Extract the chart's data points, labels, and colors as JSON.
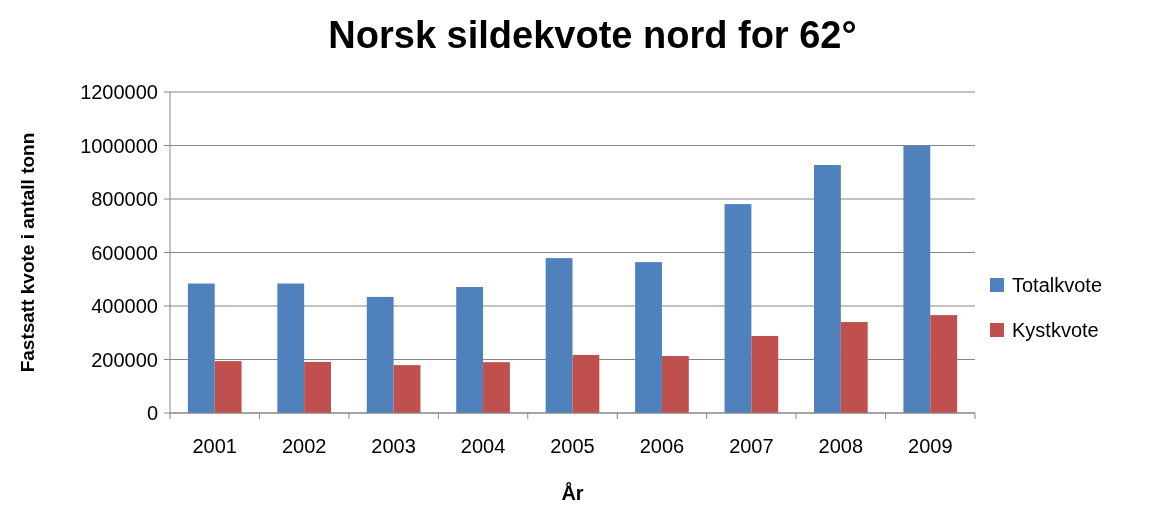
{
  "chart_data": {
    "type": "bar",
    "title": "Norsk sildekvote nord for 62°",
    "xlabel": "År",
    "ylabel": "Fastsatt kvote i antall tonn",
    "categories": [
      "2001",
      "2002",
      "2003",
      "2004",
      "2005",
      "2006",
      "2007",
      "2008",
      "2009"
    ],
    "series": [
      {
        "name": "Totalkvote",
        "color": "#4f81bd",
        "values": [
          484000,
          484000,
          434000,
          471000,
          579000,
          564000,
          781000,
          927000,
          1000000
        ]
      },
      {
        "name": "Kystkvote",
        "color": "#c0504d",
        "values": [
          194000,
          191000,
          179000,
          190000,
          217000,
          213000,
          288000,
          340000,
          366000
        ]
      }
    ],
    "ylim": [
      0,
      1200000
    ],
    "yticks": [
      0,
      200000,
      400000,
      600000,
      800000,
      1000000,
      1200000
    ],
    "grid": "y",
    "legend": "right"
  }
}
